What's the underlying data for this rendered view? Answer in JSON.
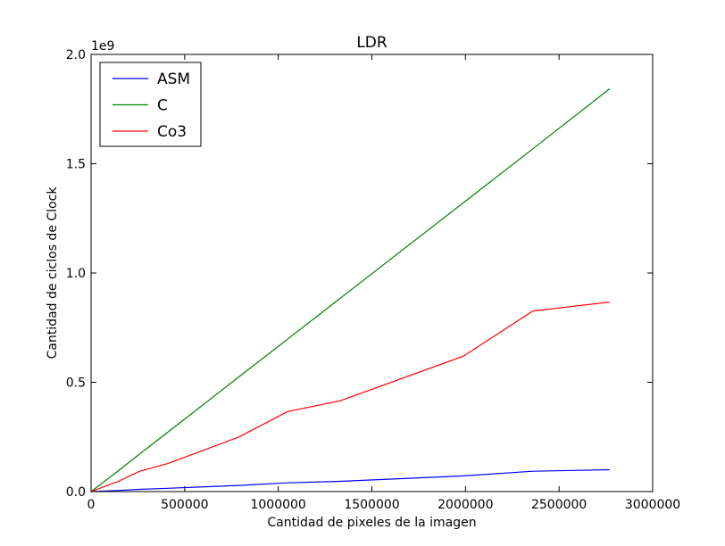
{
  "chart_data": {
    "type": "line",
    "title": "LDR",
    "xlabel": "Cantidad de pixeles de la imagen",
    "ylabel": "Cantidad de ciclos de Clock",
    "xlim": [
      0,
      3000000
    ],
    "ylim": [
      0,
      2000000000
    ],
    "x_ticks": [
      0,
      500000,
      1000000,
      1500000,
      2000000,
      2500000,
      3000000
    ],
    "x_tick_labels": [
      "0",
      "500000",
      "1000000",
      "1500000",
      "2000000",
      "2500000",
      "3000000"
    ],
    "y_ticks": [
      0,
      500000000,
      1000000000,
      1500000000,
      2000000000
    ],
    "y_tick_labels": [
      "0.0",
      "0.5",
      "1.0",
      "1.5",
      "2.0"
    ],
    "y_offset_label": "1e9",
    "grid": false,
    "legend_position": "top-left",
    "series": [
      {
        "name": "ASM",
        "color": "#0000ff",
        "x": [
          0,
          140000,
          260000,
          410000,
          790000,
          1050000,
          1330000,
          1990000,
          2360000,
          2770000
        ],
        "y": [
          0,
          5000000,
          10000000,
          15000000,
          28000000,
          40000000,
          47000000,
          72000000,
          93000000,
          100000000
        ]
      },
      {
        "name": "C",
        "color": "#008000",
        "x": [
          0,
          140000,
          260000,
          410000,
          790000,
          1050000,
          1330000,
          1990000,
          2360000,
          2770000
        ],
        "y": [
          0,
          92000000,
          172000000,
          272000000,
          525000000,
          697000000,
          884000000,
          1322000000,
          1568000000,
          1843000000
        ]
      },
      {
        "name": "Co3",
        "color": "#ff0000",
        "x": [
          0,
          140000,
          260000,
          410000,
          790000,
          1050000,
          1330000,
          1990000,
          2360000,
          2770000
        ],
        "y": [
          0,
          45000000,
          93000000,
          128000000,
          250000000,
          366000000,
          415000000,
          620000000,
          826000000,
          867000000
        ]
      }
    ]
  }
}
